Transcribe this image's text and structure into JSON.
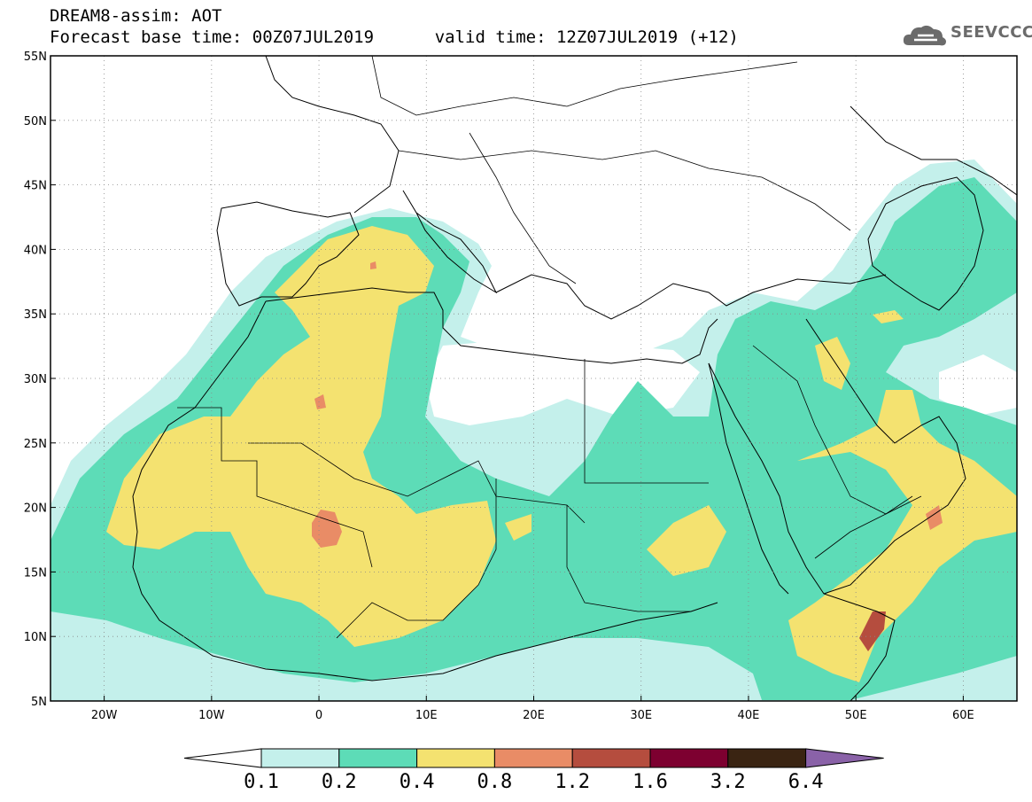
{
  "title": {
    "line1": "DREAM8-assim: AOT",
    "base_time_label": "Forecast base time: 00Z07JUL2019",
    "valid_time_label": "valid time: 12Z07JUL2019 (+12)"
  },
  "logo": {
    "text": "SEEVCCC",
    "icon": "cloud-icon"
  },
  "map": {
    "lon_range": [
      -25,
      65
    ],
    "lat_range": [
      5,
      55
    ],
    "grid": "dotted",
    "lon_ticks": [
      {
        "value": -20,
        "label": "20W"
      },
      {
        "value": -10,
        "label": "10W"
      },
      {
        "value": 0,
        "label": "0"
      },
      {
        "value": 10,
        "label": "10E"
      },
      {
        "value": 20,
        "label": "20E"
      },
      {
        "value": 30,
        "label": "30E"
      },
      {
        "value": 40,
        "label": "40E"
      },
      {
        "value": 50,
        "label": "50E"
      },
      {
        "value": 60,
        "label": "60E"
      }
    ],
    "lat_ticks": [
      {
        "value": 5,
        "label": "5N"
      },
      {
        "value": 10,
        "label": "10N"
      },
      {
        "value": 15,
        "label": "15N"
      },
      {
        "value": 20,
        "label": "20N"
      },
      {
        "value": 25,
        "label": "25N"
      },
      {
        "value": 30,
        "label": "30N"
      },
      {
        "value": 35,
        "label": "35N"
      },
      {
        "value": 40,
        "label": "40N"
      },
      {
        "value": 45,
        "label": "45N"
      },
      {
        "value": 50,
        "label": "50N"
      },
      {
        "value": 55,
        "label": "55N"
      }
    ]
  },
  "colorbar": {
    "labels": [
      "0.1",
      "0.2",
      "0.4",
      "0.8",
      "1.2",
      "1.6",
      "3.2",
      "6.4"
    ],
    "colors": [
      "#ffffff",
      "#c4f0eb",
      "#5ddcb7",
      "#f4e270",
      "#e98c66",
      "#b54d3e",
      "#7d0030",
      "#3a2412",
      "#8a62a8"
    ]
  }
}
